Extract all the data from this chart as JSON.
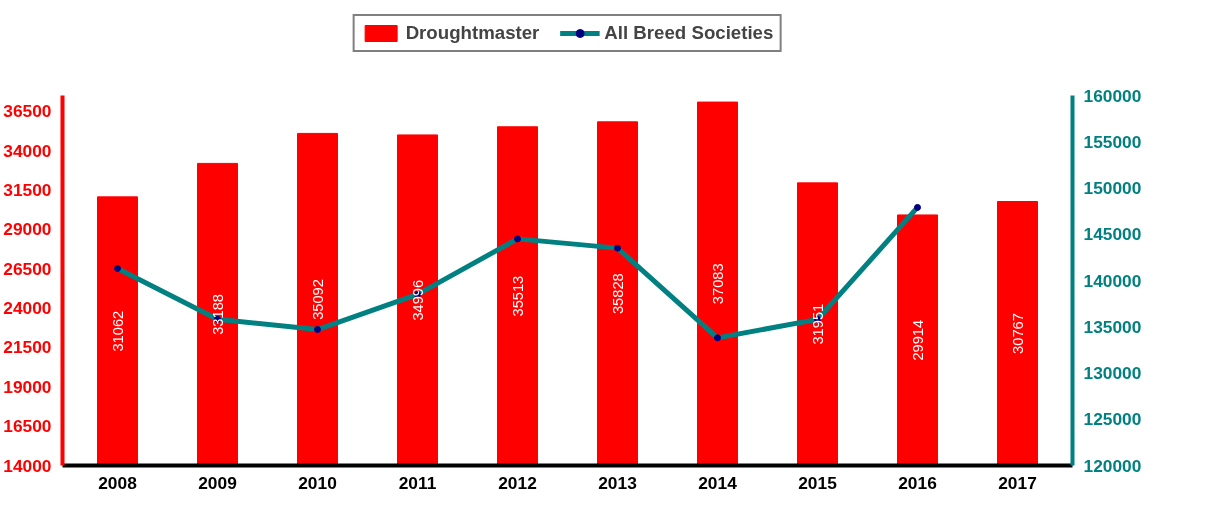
{
  "chart_data": {
    "type": "bar",
    "categories": [
      "2008",
      "2009",
      "2010",
      "2011",
      "2012",
      "2013",
      "2014",
      "2015",
      "2016",
      "2017"
    ],
    "series": [
      {
        "name": "Droughtmaster",
        "color": "#ff0000",
        "values": [
          31062,
          33188,
          35092,
          34996,
          35513,
          35828,
          37083,
          31951,
          29914,
          30767
        ],
        "value_labels": [
          "31062",
          "33188",
          "35092",
          "34996",
          "35513",
          "35828",
          "37083",
          "31951",
          "29914",
          "30767"
        ]
      },
      {
        "name": "All Breed Societies",
        "type": "line",
        "axis": "y2",
        "color": "#008080",
        "marker": "circle",
        "values": [
          141300,
          135800,
          134700,
          138500,
          144500,
          143500,
          133800,
          135800,
          147900,
          null
        ]
      }
    ],
    "legend": "top",
    "ylim": [
      14000,
      37500
    ],
    "yticks": [
      14000,
      16500,
      19000,
      21500,
      24000,
      26500,
      29000,
      31500,
      34000,
      36500
    ],
    "y2lim": [
      120000,
      160000
    ],
    "y2ticks": [
      120000,
      125000,
      130000,
      135000,
      140000,
      145000,
      150000,
      155000,
      160000
    ]
  }
}
